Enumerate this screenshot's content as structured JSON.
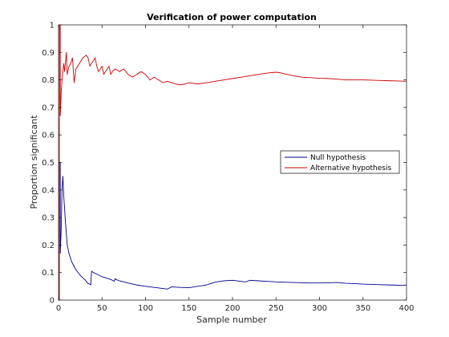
{
  "chart_data": {
    "type": "line",
    "title": "Verification of power computation",
    "xlabel": "Sample number",
    "ylabel": "Proportion significant",
    "xlim": [
      0,
      400
    ],
    "ylim": [
      0,
      1
    ],
    "xticks": [
      0,
      50,
      100,
      150,
      200,
      250,
      300,
      350,
      400
    ],
    "yticks": [
      0,
      0.1,
      0.2,
      0.3,
      0.4,
      0.5,
      0.6,
      0.7,
      0.8,
      0.9,
      1
    ],
    "grid": false,
    "legend_position": "right",
    "series": [
      {
        "name": "Null hypothesis",
        "color": "#00008b",
        "x": [
          1,
          1,
          2,
          2,
          3,
          4,
          5,
          6,
          8,
          10,
          12,
          15,
          20,
          25,
          30,
          34,
          36,
          37,
          38,
          40,
          45,
          50,
          55,
          60,
          63,
          64,
          65,
          66,
          70,
          80,
          90,
          100,
          110,
          120,
          125,
          130,
          140,
          150,
          160,
          170,
          175,
          180,
          190,
          200,
          210,
          215,
          220,
          230,
          240,
          250,
          260,
          270,
          280,
          290,
          300,
          310,
          320,
          330,
          340,
          350,
          360,
          370,
          380,
          390,
          400
        ],
        "y": [
          0,
          0.5,
          0.5,
          0.17,
          0.25,
          0.4,
          0.45,
          0.38,
          0.28,
          0.2,
          0.17,
          0.14,
          0.11,
          0.09,
          0.075,
          0.06,
          0.058,
          0.055,
          0.105,
          0.1,
          0.093,
          0.085,
          0.08,
          0.075,
          0.07,
          0.068,
          0.078,
          0.075,
          0.07,
          0.062,
          0.055,
          0.05,
          0.046,
          0.042,
          0.04,
          0.048,
          0.046,
          0.045,
          0.05,
          0.055,
          0.06,
          0.065,
          0.07,
          0.072,
          0.068,
          0.066,
          0.072,
          0.07,
          0.068,
          0.066,
          0.065,
          0.064,
          0.063,
          0.062,
          0.062,
          0.063,
          0.064,
          0.061,
          0.06,
          0.058,
          0.057,
          0.056,
          0.055,
          0.054,
          0.054
        ]
      },
      {
        "name": "Alternative hypothesis",
        "color": "#cc0000",
        "x": [
          1,
          1,
          2,
          2,
          3,
          4,
          5,
          6,
          7,
          9,
          10,
          12,
          14,
          16,
          18,
          20,
          22,
          24,
          26,
          28,
          30,
          32,
          34,
          36,
          38,
          40,
          42,
          44,
          46,
          48,
          50,
          52,
          54,
          56,
          58,
          60,
          62,
          65,
          68,
          70,
          75,
          80,
          85,
          90,
          95,
          100,
          105,
          110,
          115,
          120,
          125,
          130,
          135,
          140,
          145,
          150,
          160,
          170,
          180,
          190,
          200,
          210,
          220,
          230,
          240,
          250,
          255,
          260,
          270,
          280,
          290,
          300,
          310,
          320,
          330,
          340,
          350,
          360,
          370,
          380,
          390,
          400
        ],
        "y": [
          0,
          1,
          1,
          0.67,
          0.75,
          0.8,
          0.83,
          0.86,
          0.83,
          0.9,
          0.82,
          0.85,
          0.86,
          0.88,
          0.79,
          0.84,
          0.85,
          0.86,
          0.87,
          0.88,
          0.885,
          0.89,
          0.88,
          0.85,
          0.86,
          0.87,
          0.88,
          0.85,
          0.83,
          0.84,
          0.85,
          0.82,
          0.83,
          0.84,
          0.85,
          0.82,
          0.83,
          0.84,
          0.835,
          0.83,
          0.84,
          0.82,
          0.81,
          0.82,
          0.83,
          0.82,
          0.8,
          0.81,
          0.8,
          0.79,
          0.795,
          0.79,
          0.785,
          0.782,
          0.785,
          0.79,
          0.785,
          0.79,
          0.795,
          0.8,
          0.805,
          0.81,
          0.815,
          0.82,
          0.825,
          0.828,
          0.826,
          0.822,
          0.815,
          0.81,
          0.808,
          0.806,
          0.805,
          0.803,
          0.8,
          0.8,
          0.8,
          0.799,
          0.798,
          0.797,
          0.796,
          0.795
        ]
      }
    ]
  }
}
